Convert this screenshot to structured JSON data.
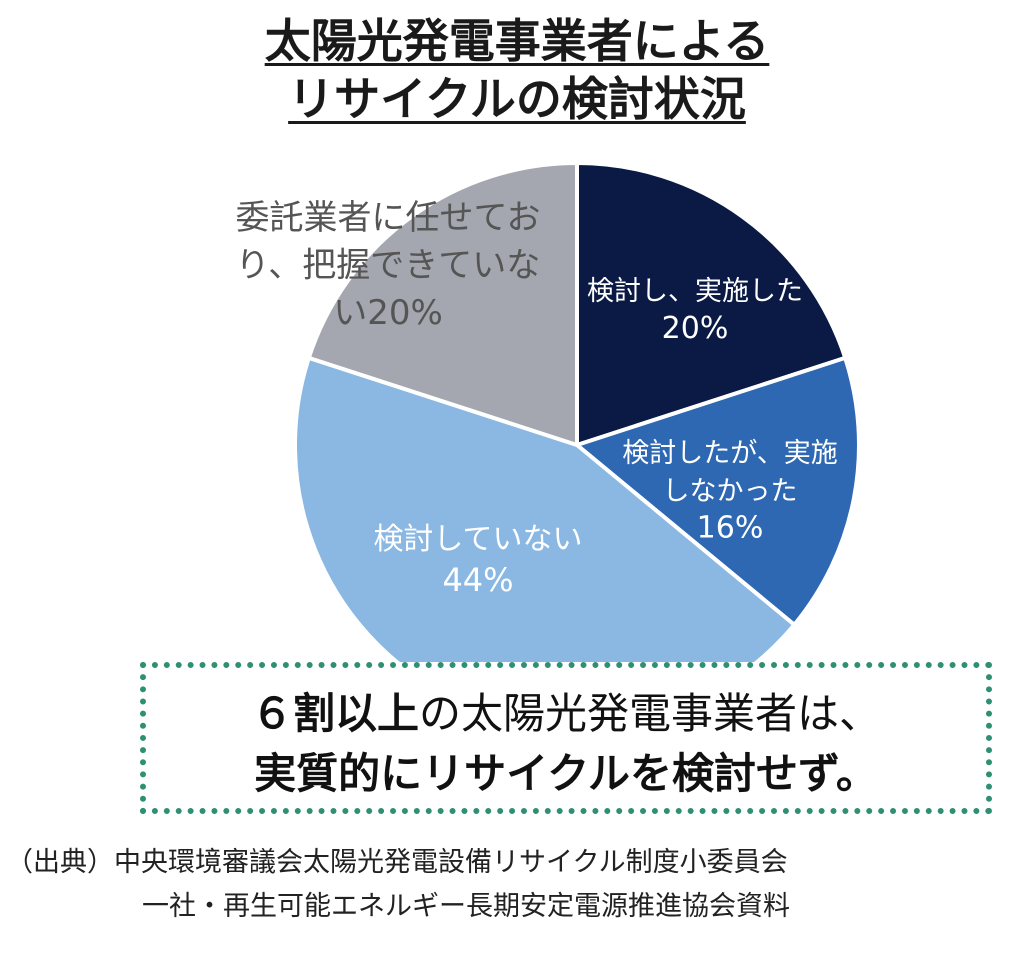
{
  "title": {
    "line1": "太陽光発電事業者による",
    "line2": "リサイクルの検討状況"
  },
  "chart_data": {
    "type": "pie",
    "title": "太陽光発電事業者によるリサイクルの検討状況",
    "slices": [
      {
        "label_lines": [
          "検討し、実施した"
        ],
        "value_text": "20%",
        "value": 20,
        "color": "#0b1a45"
      },
      {
        "label_lines": [
          "検討したが、実施",
          "しなかった"
        ],
        "value_text": "16%",
        "value": 16,
        "color": "#2e68b3"
      },
      {
        "label_lines": [
          "検討していない"
        ],
        "value_text": "44%",
        "value": 44,
        "color": "#8ab8e3"
      },
      {
        "label_lines": [
          "委託業者に任せてお",
          "り、把握できていな"
        ],
        "value_text": "い20%",
        "value": 20,
        "color": "#a5a7b0"
      }
    ]
  },
  "callout": {
    "line1_bold": "６割以上",
    "line1_rest": "の太陽光発電事業者は、",
    "line2": "実質的にリサイクルを検討せず。"
  },
  "source": {
    "line1": "（出典）中央環境審議会太陽光発電設備リサイクル制度小委員会",
    "line2": "一社・再生可能エネルギー長期安定電源推進協会資料"
  },
  "colors": {
    "callout_border": "#2f8f73",
    "slice_border": "#ffffff"
  }
}
